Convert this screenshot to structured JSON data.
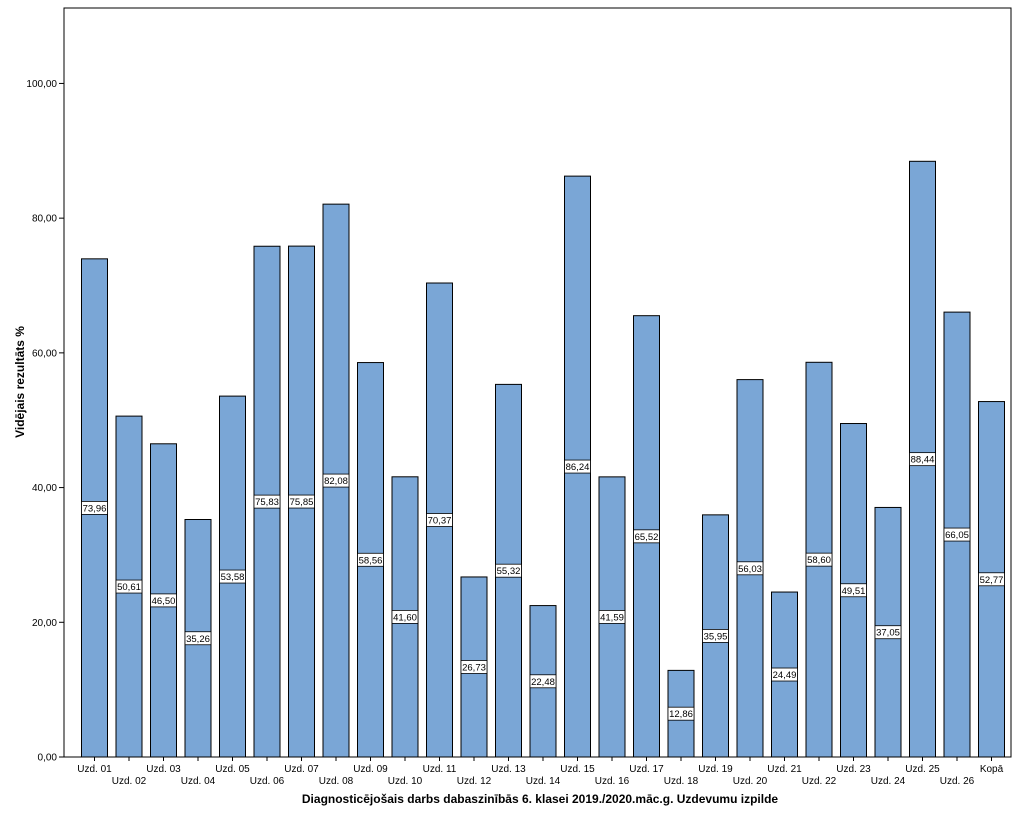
{
  "chart_data": {
    "type": "bar",
    "xlabel": "Diagnosticējošais darbs dabaszinībās 6. klasei 2019./2020.māc.g. Uzdevumu izpilde",
    "ylabel": "Vidējais rezultāts %",
    "ylim": [
      0,
      111.2
    ],
    "yticks": [
      "0,00",
      "20,00",
      "40,00",
      "60,00",
      "80,00",
      "100,00"
    ],
    "ytick_values": [
      0,
      20,
      40,
      60,
      80,
      100
    ],
    "categories": [
      "Uzd. 01",
      "Uzd. 02",
      "Uzd. 03",
      "Uzd. 04",
      "Uzd. 05",
      "Uzd. 06",
      "Uzd. 07",
      "Uzd. 08",
      "Uzd. 09",
      "Uzd. 10",
      "Uzd. 11",
      "Uzd. 12",
      "Uzd. 13",
      "Uzd. 14",
      "Uzd. 15",
      "Uzd. 16",
      "Uzd. 17",
      "Uzd. 18",
      "Uzd. 19",
      "Uzd. 20",
      "Uzd. 21",
      "Uzd. 22",
      "Uzd. 23",
      "Uzd. 24",
      "Uzd. 25",
      "Uzd. 26",
      "Kopā"
    ],
    "values": [
      73.96,
      50.61,
      46.5,
      35.26,
      53.58,
      75.83,
      75.85,
      82.08,
      58.56,
      41.6,
      70.37,
      26.73,
      55.32,
      22.48,
      86.24,
      41.59,
      65.52,
      12.86,
      35.95,
      56.03,
      24.49,
      58.6,
      49.51,
      37.05,
      88.44,
      66.05,
      52.77
    ],
    "value_labels": [
      "73,96",
      "50,61",
      "46,50",
      "35,26",
      "53,58",
      "75,83",
      "75,85",
      "82,08",
      "58,56",
      "41,60",
      "70,37",
      "26,73",
      "55,32",
      "22,48",
      "86,24",
      "41,59",
      "65,52",
      "12,86",
      "35,95",
      "56,03",
      "24,49",
      "58,60",
      "49,51",
      "37,05",
      "88,44",
      "66,05",
      "52,77"
    ],
    "bar_color": "#7aa6d6",
    "grid": false,
    "legend": "none"
  }
}
